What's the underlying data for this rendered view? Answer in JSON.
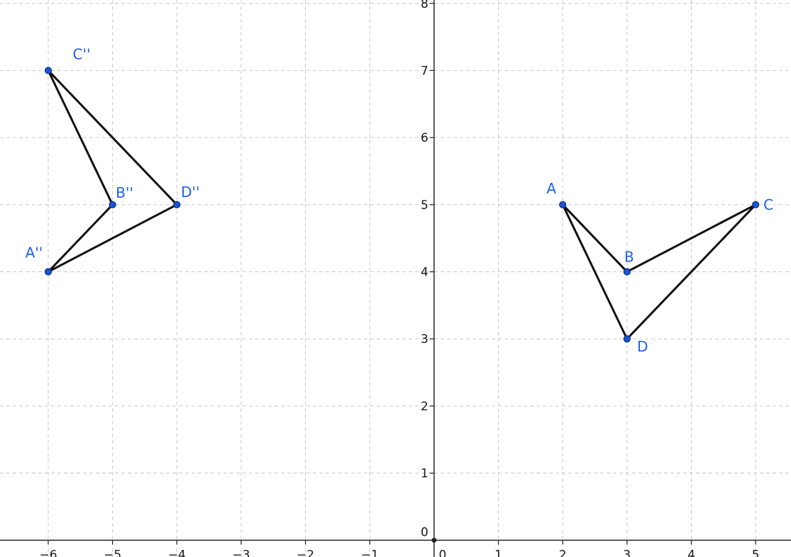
{
  "axes": {
    "x_ticks": [
      -6,
      -5,
      -4,
      -3,
      -2,
      -1,
      0,
      1,
      2,
      3,
      4,
      5
    ],
    "y_ticks": [
      0,
      1,
      2,
      3,
      4,
      5,
      6,
      7,
      8
    ],
    "x_range": [
      -6.75,
      5.55
    ],
    "y_range": [
      -0.25,
      8.05
    ],
    "grid": true
  },
  "points": [
    {
      "id": "A",
      "label": "A",
      "x": 2,
      "y": 5,
      "color": "#1f5ee6"
    },
    {
      "id": "B",
      "label": "B",
      "x": 3,
      "y": 4,
      "color": "#1f5ee6"
    },
    {
      "id": "C",
      "label": "C",
      "x": 5,
      "y": 5,
      "color": "#1f5ee6"
    },
    {
      "id": "D",
      "label": "D",
      "x": 3,
      "y": 3,
      "color": "#1f5ee6"
    },
    {
      "id": "A2",
      "label": "A''",
      "x": -6,
      "y": 4,
      "color": "#1f5ee6"
    },
    {
      "id": "B2",
      "label": "B''",
      "x": -5,
      "y": 5,
      "color": "#1f5ee6"
    },
    {
      "id": "C2",
      "label": "C''",
      "x": -6,
      "y": 7,
      "color": "#1f5ee6"
    },
    {
      "id": "D2",
      "label": "D''",
      "x": -4,
      "y": 5,
      "color": "#1f5ee6"
    }
  ],
  "segments": [
    [
      "A",
      "B"
    ],
    [
      "B",
      "C"
    ],
    [
      "C",
      "D"
    ],
    [
      "D",
      "A"
    ],
    [
      "A2",
      "B2"
    ],
    [
      "B2",
      "C2"
    ],
    [
      "C2",
      "D2"
    ],
    [
      "D2",
      "A2"
    ]
  ]
}
